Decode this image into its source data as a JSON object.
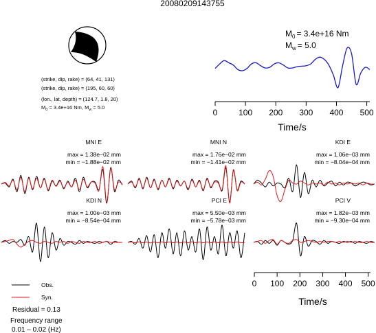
{
  "title": "20080209143755",
  "moment": {
    "m0_label": "M",
    "m0_sub": "0",
    "m0_value": "=  3.4e+16 Nm",
    "mw_label": "M",
    "mw_sub": "w",
    "mw_value": "= 5.0"
  },
  "info": {
    "strike1": "(strike, dip, rake) = (64, 41, 131)",
    "strike2": "(strike, dip, rake) = (195, 60, 60)",
    "location": "(lon., lat, depth) = (124.7, 1.8, 20)",
    "m0_sub": "0",
    "m0_text": " = 3.4e+16 Nm, M",
    "mw_sub": "w",
    "mw_text": " = 5.0",
    "m_label": "M"
  },
  "legend": {
    "obs": "Obs.",
    "syn": "Syn.",
    "residual": "Residual = 0.13",
    "freq_title": "Frequency range",
    "freq_value": "0.01 – 0.02 (Hz)"
  },
  "colors": {
    "observed": "#000000",
    "synthetic": "#e0191b",
    "source_time_function": "#1818c8",
    "beachball_fill": "#000000"
  },
  "chart_data": [
    {
      "type": "line",
      "name": "source time function",
      "xlabel": "Time/s",
      "xlim": [
        0,
        510
      ],
      "xticks": [
        "0",
        "100",
        "200",
        "300",
        "400",
        "500"
      ],
      "x": [
        0,
        15,
        30,
        45,
        60,
        75,
        90,
        105,
        120,
        135,
        150,
        165,
        180,
        195,
        210,
        225,
        240,
        255,
        270,
        285,
        300,
        315,
        330,
        345,
        360,
        375,
        390,
        405,
        420,
        435,
        450,
        465,
        480,
        495,
        510
      ],
      "y": [
        0.1,
        0.3,
        0.45,
        0.35,
        0.25,
        0.05,
        0.0,
        0.1,
        0.3,
        0.35,
        0.22,
        0.12,
        0.15,
        0.3,
        0.35,
        0.25,
        0.12,
        0.12,
        0.18,
        0.2,
        0.22,
        0.3,
        0.5,
        0.6,
        0.5,
        0.25,
        -0.2,
        -0.75,
        0.2,
        1.0,
        0.75,
        -0.6,
        -0.1,
        0.15,
        0.05
      ]
    },
    {
      "type": "line",
      "station": "MNI E",
      "max_label": "max = 1.38e−02 mm",
      "min_label": "min = −1.88e−02 mm",
      "series": [
        {
          "name": "Obs.",
          "values": [
            0,
            0.05,
            -0.15,
            0.25,
            -0.4,
            0.45,
            -0.5,
            0.35,
            -0.3,
            0.4,
            -0.2,
            0.3,
            -0.35,
            0.15,
            -0.1,
            0.2,
            -0.25,
            0.15,
            -0.15,
            0.3,
            -0.4,
            0.35,
            -0.2,
            0.1,
            0.1,
            -0.3,
            0.75,
            -1.0,
            0.85,
            -0.4,
            0.2,
            -0.05
          ]
        },
        {
          "name": "Syn.",
          "values": [
            0,
            0.08,
            -0.1,
            0.2,
            -0.3,
            0.35,
            -0.4,
            0.3,
            -0.25,
            0.3,
            -0.2,
            0.25,
            -0.3,
            0.2,
            -0.12,
            0.15,
            -0.2,
            0.1,
            -0.15,
            0.2,
            -0.3,
            0.25,
            -0.15,
            0.1,
            0.05,
            -0.35,
            0.9,
            -0.95,
            0.8,
            -0.3,
            0.1,
            0.0
          ]
        }
      ]
    },
    {
      "type": "line",
      "station": "MNI N",
      "max_label": "max = 1.76e−02 mm",
      "min_label": "min = −1.41e−02 mm",
      "series": [
        {
          "name": "Obs.",
          "values": [
            0,
            0.15,
            -0.2,
            0.3,
            -0.25,
            0.35,
            -0.2,
            0.25,
            -0.3,
            0.2,
            -0.15,
            0.3,
            -0.25,
            0.2,
            -0.1,
            0.15,
            -0.3,
            0.25,
            -0.15,
            0.2,
            -0.35,
            0.3,
            -0.2,
            0.15,
            0.1,
            -0.35,
            0.85,
            -0.95,
            0.7,
            -0.3,
            0.15,
            0.0
          ]
        },
        {
          "name": "Syn.",
          "values": [
            0,
            0.1,
            -0.15,
            0.25,
            -0.2,
            0.3,
            -0.2,
            0.2,
            -0.25,
            0.2,
            -0.15,
            0.25,
            -0.2,
            0.15,
            -0.1,
            0.15,
            -0.25,
            0.2,
            -0.15,
            0.15,
            -0.3,
            0.25,
            -0.15,
            0.1,
            0.05,
            -0.3,
            0.95,
            -1.0,
            0.75,
            -0.35,
            0.1,
            0.0
          ]
        }
      ]
    },
    {
      "type": "line",
      "station": "KDI E",
      "max_label": "max = 1.06e−03 mm",
      "min_label": "min = −8.04e−04 mm",
      "series": [
        {
          "name": "Obs.",
          "values": [
            0,
            0.2,
            0.05,
            -0.15,
            0.1,
            -0.1,
            0.05,
            0.0,
            -0.2,
            0.3,
            -0.4,
            1.0,
            -0.7,
            0.6,
            -0.5,
            0.2,
            -0.15,
            0.2,
            -0.1,
            0.05,
            0.15,
            -0.1,
            0.1,
            -0.05,
            0.1,
            0.05,
            -0.1,
            0.0,
            0.1,
            0.05,
            -0.05,
            0.0
          ]
        },
        {
          "name": "Syn.",
          "values": [
            0,
            0.1,
            -0.05,
            0.25,
            0.7,
            0.4,
            -0.6,
            -0.9,
            -0.3,
            0.2,
            0.05,
            0.0,
            0.15,
            0.05,
            -0.05,
            0.05,
            0.0,
            0.05,
            -0.05,
            0.1,
            0.0,
            0.05,
            -0.05,
            0.05,
            0.0,
            0.05,
            0.0,
            0.05,
            -0.05,
            0.05,
            0.0,
            0.0
          ]
        }
      ]
    },
    {
      "type": "line",
      "station": "KDI N",
      "max_label": "max = 1.00e−03 mm",
      "min_label": "min = −8.54e−04 mm",
      "series": [
        {
          "name": "Obs.",
          "values": [
            0,
            0.1,
            -0.05,
            0.05,
            0.0,
            0.15,
            -0.15,
            0.3,
            -0.5,
            1.0,
            -1.0,
            0.8,
            -0.8,
            0.5,
            -0.4,
            0.2,
            -0.15,
            0.05,
            0.0,
            -0.1,
            0.1,
            -0.05,
            0.05,
            0.0,
            -0.05,
            0.05,
            0.0,
            0.05,
            -0.1,
            0.05,
            0.0,
            0.0
          ]
        },
        {
          "name": "Syn.",
          "values": [
            0,
            0.05,
            0.1,
            0.15,
            -0.1,
            -0.25,
            -0.1,
            0.05,
            0.1,
            0.0,
            -0.05,
            0.05,
            0.0,
            -0.05,
            0.05,
            0.0,
            0.05,
            -0.05,
            0.05,
            0.0,
            -0.05,
            0.05,
            0.0,
            0.0,
            0.05,
            -0.05,
            0.0,
            0.05,
            0.0,
            0.0,
            0.0,
            0.0
          ]
        }
      ]
    },
    {
      "type": "line",
      "station": "PCI E",
      "max_label": "max = 5.50e−03 mm",
      "min_label": "min = −5.78e−03 mm",
      "series": [
        {
          "name": "Obs.",
          "values": [
            0,
            0.05,
            -0.1,
            0.2,
            -0.3,
            0.35,
            -0.5,
            0.4,
            -0.8,
            0.5,
            -0.3,
            0.7,
            -0.6,
            0.5,
            -0.7,
            0.6,
            -0.4,
            0.3,
            -0.5,
            0.7,
            -0.9,
            0.8,
            -0.4,
            0.3,
            -0.6,
            0.9,
            -0.7,
            0.5,
            -0.3,
            0.6,
            -0.8,
            0.5
          ]
        },
        {
          "name": "Syn.",
          "values": [
            0,
            0.02,
            -0.02,
            0.03,
            -0.02,
            0.02,
            -0.03,
            0.02,
            -0.02,
            0.03,
            -0.02,
            0.02,
            -0.02,
            0.02,
            -0.03,
            0.02,
            -0.02,
            0.03,
            -0.02,
            0.02,
            -0.02,
            0.02,
            -0.02,
            0.03,
            -0.02,
            0.02,
            -0.03,
            0.02,
            -0.02,
            0.02,
            -0.02,
            0.0
          ]
        }
      ]
    },
    {
      "type": "line",
      "station": "PCI V",
      "max_label": "max = 1.82e−03 mm",
      "min_label": "min = −9.30e−04 mm",
      "xlabel": "Time/s",
      "xlim": [
        0,
        510
      ],
      "xticks": [
        "0",
        "100",
        "200",
        "300",
        "400",
        "500"
      ],
      "series": [
        {
          "name": "Obs.",
          "values": [
            0,
            0.05,
            -0.1,
            0.1,
            -0.05,
            0.1,
            -0.15,
            0.1,
            0.0,
            -0.1,
            0.1,
            1.0,
            -0.7,
            0.3,
            -0.2,
            0.1,
            0.05,
            -0.1,
            0.1,
            -0.05,
            0.05,
            0.0,
            -0.05,
            0.05,
            0.0,
            0.05,
            -0.05,
            0.05,
            0.0,
            -0.05,
            0.05,
            0.0
          ]
        },
        {
          "name": "Syn.",
          "values": [
            0,
            0.05,
            0.1,
            -0.05,
            0.1,
            0.15,
            -0.1,
            0.1,
            0.0,
            -0.05,
            0.1,
            0.15,
            0.0,
            0.05,
            0.1,
            0.05,
            0.0,
            0.05,
            0.0,
            0.05,
            0.05,
            0.0,
            0.05,
            0.0,
            0.05,
            0.0,
            0.05,
            0.0,
            0.0,
            0.05,
            0.0,
            0.0
          ]
        }
      ]
    }
  ]
}
